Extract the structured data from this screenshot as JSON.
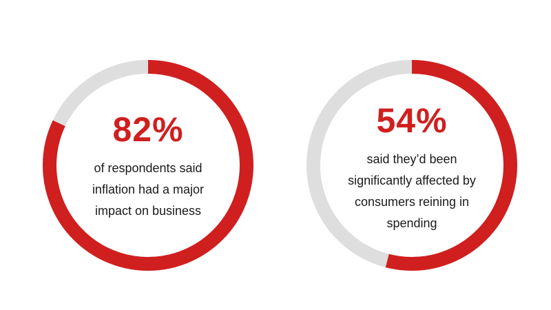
{
  "chart_data": [
    {
      "type": "pie",
      "value": 82,
      "label": "82%",
      "caption": "of respondents said inflation had a major impact on business"
    },
    {
      "type": "pie",
      "value": 54,
      "label": "54%",
      "caption": "said they’d been significantly affected by consumers reining in spending"
    }
  ],
  "colors": {
    "accent": "#d01f1f",
    "track": "#dedede",
    "text": "#1a1a1a",
    "background": "#ffffff"
  }
}
